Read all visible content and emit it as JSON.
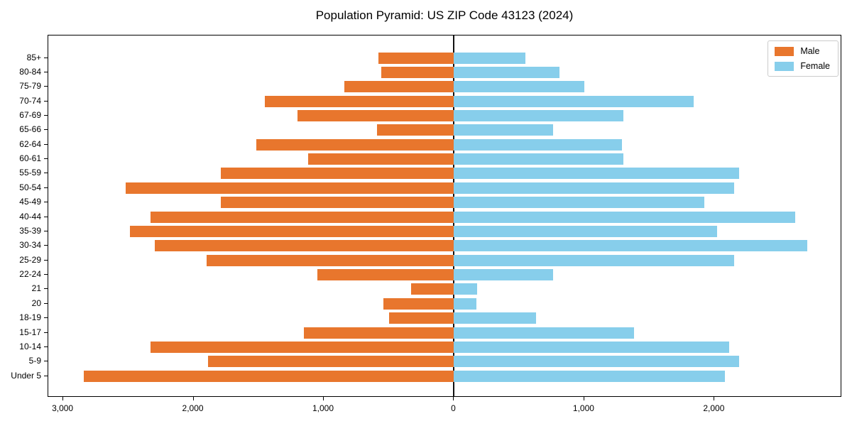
{
  "chart_data": {
    "type": "bar",
    "subtype": "population-pyramid",
    "orientation": "horizontal",
    "title": "Population Pyramid: US ZIP Code 43123 (2024)",
    "categories": [
      "85+",
      "80-84",
      "75-79",
      "70-74",
      "67-69",
      "65-66",
      "62-64",
      "60-61",
      "55-59",
      "50-54",
      "45-49",
      "40-44",
      "35-39",
      "30-34",
      "25-29",
      "22-24",
      "21",
      "20",
      "18-19",
      "15-17",
      "10-14",
      "5-9",
      "Under 5"
    ],
    "series": [
      {
        "name": "Male",
        "side": "left",
        "color": "#E8762D",
        "values": [
          580,
          560,
          840,
          1450,
          1200,
          590,
          1520,
          1120,
          1790,
          2520,
          1790,
          2330,
          2490,
          2300,
          1900,
          1050,
          330,
          540,
          500,
          1150,
          2330,
          1890,
          2840
        ]
      },
      {
        "name": "Female",
        "side": "right",
        "color": "#87CEEB",
        "values": [
          550,
          810,
          1000,
          1840,
          1300,
          760,
          1290,
          1300,
          2190,
          2150,
          1920,
          2620,
          2020,
          2710,
          2150,
          760,
          180,
          170,
          630,
          1380,
          2110,
          2190,
          2080
        ]
      }
    ],
    "xlim": [
      -3115,
      2979
    ],
    "xticks": [
      {
        "value": -3000,
        "label": "3,000"
      },
      {
        "value": -2000,
        "label": "2,000"
      },
      {
        "value": -1000,
        "label": "1,000"
      },
      {
        "value": 0,
        "label": "0"
      },
      {
        "value": 1000,
        "label": "1,000"
      },
      {
        "value": 2000,
        "label": "2,000"
      }
    ],
    "grid": false,
    "legend_position": "upper right",
    "legend": {
      "male_label": "Male",
      "female_label": "Female"
    }
  }
}
